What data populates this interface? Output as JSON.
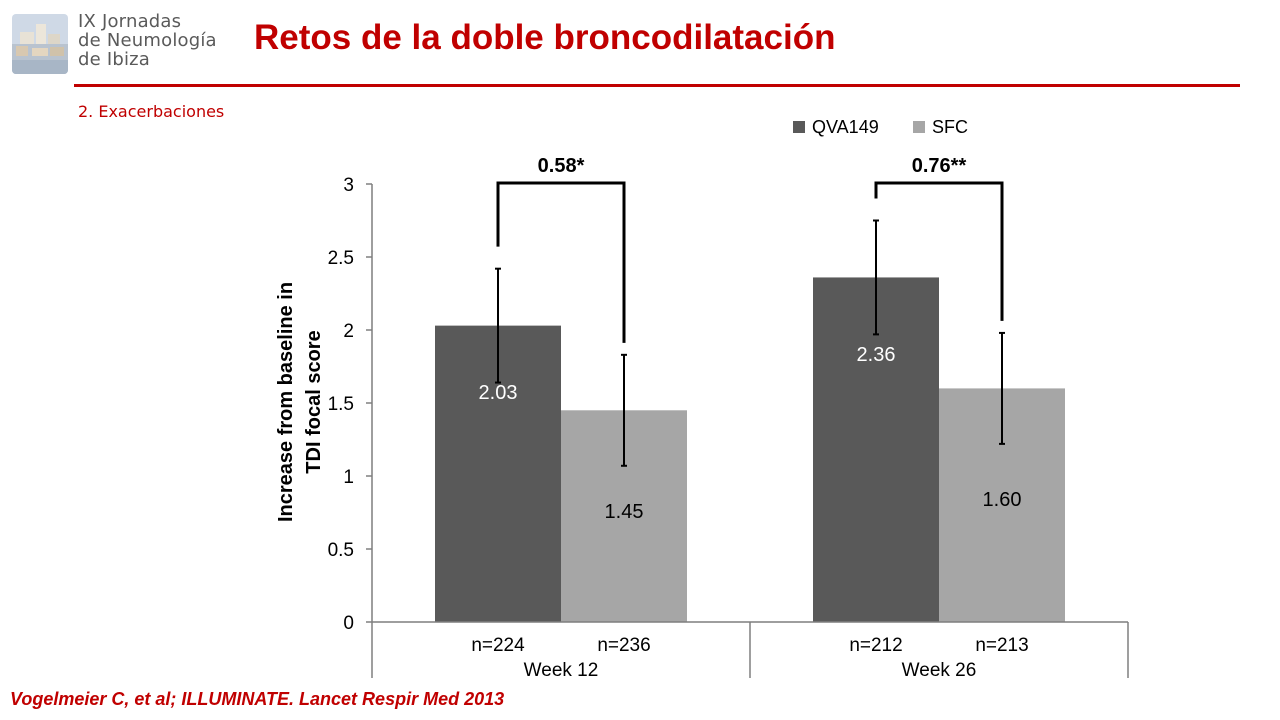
{
  "header": {
    "logo_lines": [
      "IX Jornadas",
      "de Neumología",
      "de Ibiza"
    ],
    "title": "Retos de la doble broncodilatación",
    "subtitle": "2. Exacerbaciones"
  },
  "citation": "Vogelmeier C, et al; ILLUMINATE. Lancet Respir Med 2013",
  "colors": {
    "accent": "#c00000",
    "qva149": "#595959",
    "sfc": "#a6a6a6"
  },
  "chart_data": {
    "type": "bar",
    "ylabel_lines": [
      "Increase from baseline in",
      "TDI focal score"
    ],
    "ylim": [
      0,
      3
    ],
    "yticks": [
      0,
      0.5,
      1,
      1.5,
      2,
      2.5,
      3
    ],
    "ytick_labels": [
      "0",
      "0.5",
      "1",
      "1.5",
      "2",
      "2.5",
      "3"
    ],
    "grid": false,
    "legend_position": "top-right",
    "groups": [
      {
        "label": "Week 12",
        "n_labels": [
          "n=224",
          "n=236"
        ],
        "difference": "0.58*",
        "bars": [
          {
            "series": "QVA149",
            "value": 2.03,
            "label": "2.03",
            "err_low": 1.64,
            "err_high": 2.42
          },
          {
            "series": "SFC",
            "value": 1.45,
            "label": "1.45",
            "err_low": 1.07,
            "err_high": 1.83
          }
        ]
      },
      {
        "label": "Week 26",
        "n_labels": [
          "n=212",
          "n=213"
        ],
        "difference": "0.76**",
        "bars": [
          {
            "series": "QVA149",
            "value": 2.36,
            "label": "2.36",
            "err_low": 1.97,
            "err_high": 2.75
          },
          {
            "series": "SFC",
            "value": 1.6,
            "label": "1.60",
            "err_low": 1.22,
            "err_high": 1.98
          }
        ]
      }
    ],
    "series": [
      {
        "name": "QVA149",
        "color": "#595959",
        "values": [
          2.03,
          2.36
        ]
      },
      {
        "name": "SFC",
        "color": "#a6a6a6",
        "values": [
          1.45,
          1.6
        ]
      }
    ]
  }
}
